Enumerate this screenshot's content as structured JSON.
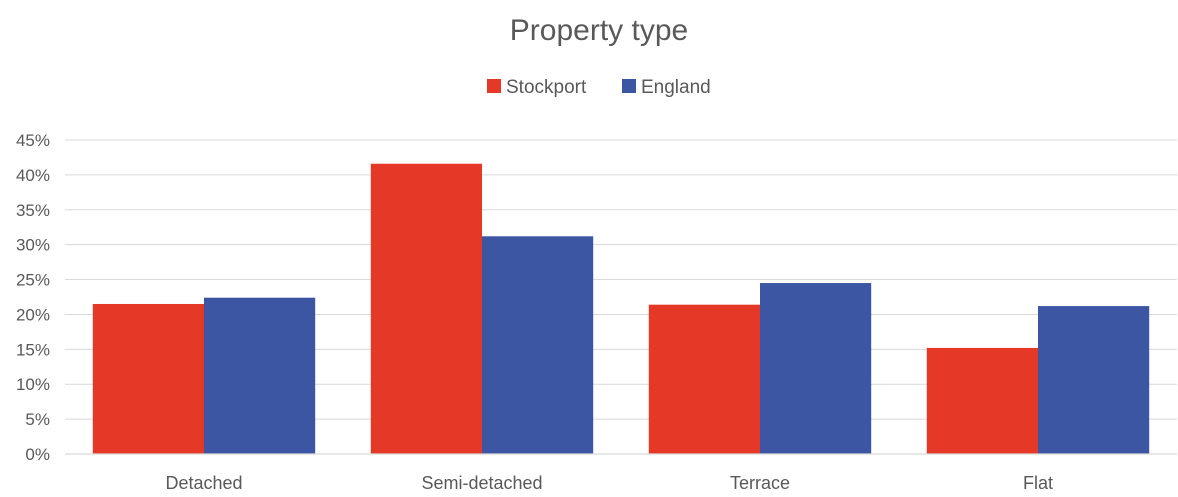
{
  "chart_data": {
    "type": "bar",
    "title": "Property type",
    "categories": [
      "Detached",
      "Semi-detached",
      "Terrace",
      "Flat"
    ],
    "series": [
      {
        "name": "Stockport",
        "color": "#e53826",
        "values": [
          21.5,
          41.6,
          21.4,
          15.2
        ]
      },
      {
        "name": "England",
        "color": "#3c56a3",
        "values": [
          22.4,
          31.2,
          24.5,
          21.2
        ]
      }
    ],
    "yticks": [
      "0%",
      "5%",
      "10%",
      "15%",
      "20%",
      "25%",
      "30%",
      "35%",
      "40%",
      "45%"
    ],
    "ylim": [
      0,
      45
    ],
    "ystep": 5,
    "grid": true,
    "legend_position": "top-center",
    "xlabel": "",
    "ylabel": ""
  }
}
